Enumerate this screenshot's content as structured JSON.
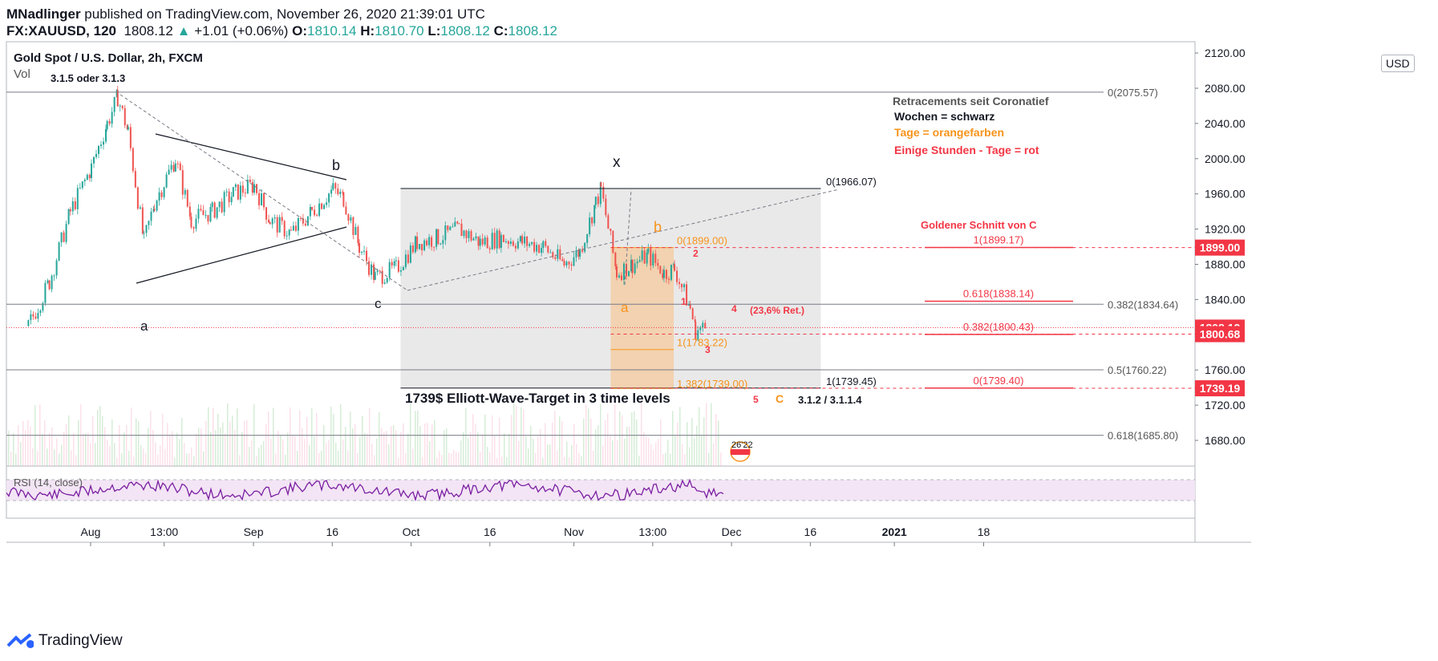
{
  "header": {
    "author": "MNadlinger",
    "published": "published on TradingView.com, November 26, 2020 21:39:01 UTC",
    "symbol": "FX:XAUUSD, 120",
    "last": "1808.12",
    "change": "+1.01 (+0.06%)",
    "o_label": "O:",
    "o": "1810.14",
    "h_label": "H:",
    "h": "1810.70",
    "l_label": "L:",
    "l": "1808.12",
    "c_label": "C:",
    "c": "1808.12"
  },
  "pane": {
    "title": "Gold Spot / U.S. Dollar, 2h, FXCM",
    "vol_label": "Vol",
    "currency_button": "USD",
    "rsi_label": "RSI (14, close)"
  },
  "footer": {
    "brand": "TradingView"
  },
  "annotations": {
    "wave_top": "3.1.5 oder 3.1.3",
    "legend_title": "Retracements seit Coronatief",
    "legend_weeks": "Wochen = schwarz",
    "legend_days": "Tage = orangefarben",
    "legend_hours": "Einige Stunden - Tage = rot",
    "golden": "Goldener Schnitt von C",
    "target": "1739$ Elliott-Wave-Target in 3 time levels",
    "bottom_waves": "3.1.2 / 3.1.1.4",
    "retrace_note": "(23,6% Ret.)",
    "wave_a": "a",
    "wave_b": "b",
    "wave_c": "c",
    "wave_x": "x",
    "wave_oa": "a",
    "wave_ob": "b",
    "wave_oc": "C",
    "wave_1": "1",
    "wave_2": "2",
    "wave_3": "3",
    "wave_4": "4",
    "wave_5": "5",
    "flag_time": "26'22"
  },
  "fib_black": [
    {
      "label": "0(2075.57)",
      "price": 2075.57
    },
    {
      "label": "0.382(1834.64)",
      "price": 1834.64
    },
    {
      "label": "0.5(1760.22)",
      "price": 1760.22
    },
    {
      "label": "0.618(1685.80)",
      "price": 1685.8
    }
  ],
  "fib_day": [
    {
      "label": "0(1966.07)",
      "price": 1966.07
    },
    {
      "label": "1(1739.45)",
      "price": 1739.45
    }
  ],
  "fib_orange": [
    {
      "label": "0(1899.00)",
      "price": 1899.0
    },
    {
      "label": "1(1783.22)",
      "price": 1783.22
    },
    {
      "label": "1.382(1739.00)",
      "price": 1739.0
    }
  ],
  "fib_red": [
    {
      "label": "1(1899.17)",
      "price": 1899.17
    },
    {
      "label": "0.618(1838.14)",
      "price": 1838.14
    },
    {
      "label": "0.382(1800.43)",
      "price": 1800.43
    },
    {
      "label": "0(1739.40)",
      "price": 1739.4
    }
  ],
  "price_tags": [
    {
      "label": "1899.00",
      "price": 1899.0
    },
    {
      "label": "1808.12",
      "price": 1808.12
    },
    {
      "label": "1800.68",
      "price": 1800.68
    },
    {
      "label": "1739.19",
      "price": 1739.19
    }
  ],
  "colors": {
    "up": "#26a69a",
    "down": "#ef5350",
    "orange": "#f7931a",
    "red": "#f23645",
    "rsi": "#7b1fa2",
    "grid": "#e0e3eb"
  },
  "chart_data": {
    "type": "line",
    "title": "Gold Spot / U.S. Dollar, 2h, FXCM",
    "y_ticks": [
      1680,
      1720,
      1760,
      1800,
      1840,
      1880,
      1920,
      1960,
      2000,
      2040,
      2080,
      2120
    ],
    "ylim": [
      1655,
      2130
    ],
    "x_ticks": [
      "Aug",
      "13:00",
      "Sep",
      "16",
      "Oct",
      "16",
      "Nov",
      "13:00",
      "Dec",
      "16",
      "2021",
      "18"
    ],
    "series": [
      {
        "x": [
          "2020-07-20",
          "2020-07-24",
          "2020-07-28",
          "2020-08-01",
          "2020-08-04",
          "2020-08-06",
          "2020-08-08",
          "2020-08-11",
          "2020-08-13",
          "2020-08-17",
          "2020-08-20",
          "2020-08-24",
          "2020-08-28",
          "2020-09-01",
          "2020-09-04",
          "2020-09-08",
          "2020-09-12",
          "2020-09-16",
          "2020-09-18",
          "2020-09-21",
          "2020-09-24",
          "2020-09-28",
          "2020-10-02",
          "2020-10-06",
          "2020-10-10",
          "2020-10-14",
          "2020-10-18",
          "2020-10-22",
          "2020-10-26",
          "2020-10-30",
          "2020-11-02",
          "2020-11-05",
          "2020-11-06",
          "2020-11-09",
          "2020-11-12",
          "2020-11-15",
          "2020-11-18",
          "2020-11-20",
          "2020-11-23",
          "2020-11-24",
          "2020-11-26"
        ],
        "values": [
          1810,
          1860,
          1940,
          1990,
          2040,
          2070,
          2030,
          1905,
          1950,
          2000,
          1930,
          1940,
          1960,
          1970,
          1930,
          1915,
          1940,
          1965,
          1955,
          1900,
          1865,
          1875,
          1905,
          1910,
          1920,
          1905,
          1910,
          1905,
          1900,
          1880,
          1895,
          1950,
          1965,
          1870,
          1880,
          1890,
          1870,
          1875,
          1830,
          1805,
          1808
        ]
      }
    ]
  }
}
